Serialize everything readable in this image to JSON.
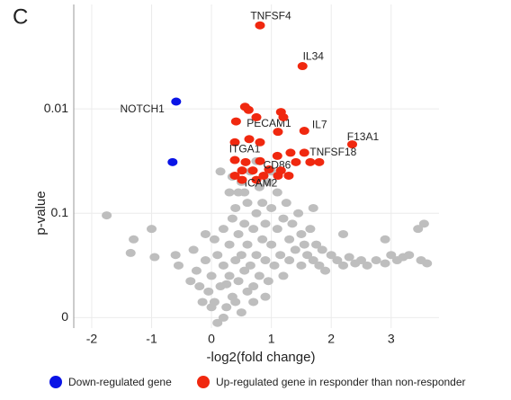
{
  "chart_data": {
    "type": "scatter",
    "panel_label": "C",
    "xlabel": "-log2(fold change)",
    "ylabel": "p-value",
    "xlim": [
      -2.3,
      3.8
    ],
    "ylim": [
      -0.1,
      3.0
    ],
    "xticks": [
      -2,
      -1,
      0,
      1,
      2,
      3
    ],
    "yticks": [
      {
        "value": 0,
        "label": "0"
      },
      {
        "value": 1,
        "label": "0.1"
      },
      {
        "value": 2,
        "label": "0.01"
      }
    ],
    "grid": true,
    "legend": "bottom",
    "series": [
      {
        "color": "#bebebe",
        "x": [
          -1.75,
          -1.3,
          -1.35,
          -1.0,
          -0.95,
          -0.6,
          -0.55,
          -0.3,
          -0.25,
          -0.2,
          -0.35,
          -0.1,
          -0.05,
          0.0,
          0.05,
          0.1,
          0.15,
          0.2,
          0.2,
          0.25,
          0.3,
          0.3,
          0.3,
          0.35,
          0.35,
          0.4,
          0.4,
          0.45,
          0.45,
          0.5,
          0.5,
          0.5,
          0.55,
          0.55,
          0.6,
          0.6,
          0.6,
          0.65,
          0.65,
          0.7,
          0.7,
          0.75,
          0.75,
          0.8,
          0.8,
          0.85,
          0.85,
          0.9,
          0.9,
          0.95,
          0.95,
          1.0,
          1.0,
          1.05,
          1.1,
          1.1,
          1.15,
          1.2,
          1.2,
          1.25,
          1.3,
          1.3,
          1.35,
          1.4,
          1.45,
          1.5,
          1.5,
          1.55,
          1.6,
          1.65,
          1.7,
          1.75,
          1.8,
          1.85,
          1.9,
          2.0,
          2.1,
          2.2,
          2.3,
          2.4,
          2.5,
          2.6,
          2.75,
          2.9,
          3.0,
          3.1,
          3.2,
          3.3,
          3.5,
          3.6,
          3.45,
          3.55,
          2.9,
          2.2,
          1.7,
          0.0,
          0.1,
          0.2,
          0.25,
          -0.1,
          0.4,
          0.15,
          0.35,
          0.55,
          0.75,
          0.45,
          1.0,
          -0.15,
          0.05,
          0.7,
          0.9
        ],
        "values": [
          0.98,
          0.75,
          0.62,
          0.85,
          0.58,
          0.6,
          0.5,
          0.65,
          0.45,
          0.3,
          0.35,
          0.55,
          0.25,
          0.4,
          0.15,
          0.6,
          0.3,
          0.85,
          0.5,
          0.1,
          0.7,
          0.4,
          1.2,
          0.95,
          0.2,
          0.55,
          1.05,
          0.8,
          0.35,
          1.3,
          0.6,
          0.05,
          0.9,
          0.45,
          1.1,
          0.7,
          0.25,
          1.4,
          0.5,
          0.85,
          0.3,
          1.0,
          0.6,
          1.25,
          0.4,
          0.75,
          1.1,
          0.55,
          0.9,
          1.3,
          0.35,
          0.7,
          1.05,
          0.5,
          0.85,
          1.2,
          0.6,
          0.95,
          0.4,
          1.1,
          0.75,
          0.55,
          0.9,
          0.65,
          1.0,
          0.5,
          0.8,
          0.7,
          0.6,
          0.85,
          0.55,
          0.7,
          0.5,
          0.65,
          0.45,
          0.6,
          0.55,
          0.5,
          0.58,
          0.52,
          0.55,
          0.5,
          0.55,
          0.52,
          0.6,
          0.55,
          0.58,
          0.6,
          0.55,
          0.52,
          0.85,
          0.9,
          0.75,
          0.8,
          1.05,
          0.1,
          -0.05,
          0.0,
          0.32,
          0.8,
          0.15,
          1.4,
          1.35,
          1.2,
          1.5,
          1.2,
          1.4,
          0.15,
          0.75,
          0.15,
          0.2
        ]
      },
      {
        "name": "Down-regulated gene",
        "color": "#0a14e6",
        "x": [
          -0.59,
          -0.65
        ],
        "values": [
          2.07,
          1.49
        ],
        "labels": [
          "NOTCH1",
          null
        ]
      },
      {
        "name": "Up-regulated gene in responder than non-responder",
        "color": "#f0280f",
        "x": [
          0.81,
          1.52,
          2.35,
          1.11,
          1.55,
          1.55,
          0.39,
          0.96,
          0.75,
          0.62,
          0.56,
          0.41,
          0.75,
          1.16,
          1.2,
          0.63,
          0.81,
          1.32,
          1.1,
          0.39,
          0.57,
          0.81,
          1.41,
          1.65,
          1.8,
          0.51,
          0.69,
          1.16,
          0.39,
          0.87,
          1.11,
          1.29,
          0.51
        ],
        "values": [
          2.8,
          2.41,
          1.66,
          1.78,
          1.79,
          1.58,
          1.68,
          1.42,
          1.32,
          1.99,
          2.02,
          1.88,
          1.92,
          1.97,
          1.92,
          1.71,
          1.68,
          1.58,
          1.55,
          1.51,
          1.49,
          1.5,
          1.49,
          1.49,
          1.49,
          1.41,
          1.41,
          1.41,
          1.36,
          1.36,
          1.36,
          1.36,
          1.32
        ],
        "labels": [
          "TNFSF4",
          "IL34",
          "F13A1",
          "PECAM1",
          "IL7",
          "TNFSF18",
          "ITGA1",
          "CD86",
          "ICAM2",
          null,
          null,
          null,
          null,
          null,
          null,
          null,
          null,
          null,
          null,
          null,
          null,
          null,
          null,
          null,
          null,
          null,
          null,
          null,
          null,
          null,
          null,
          null,
          null
        ]
      }
    ]
  }
}
